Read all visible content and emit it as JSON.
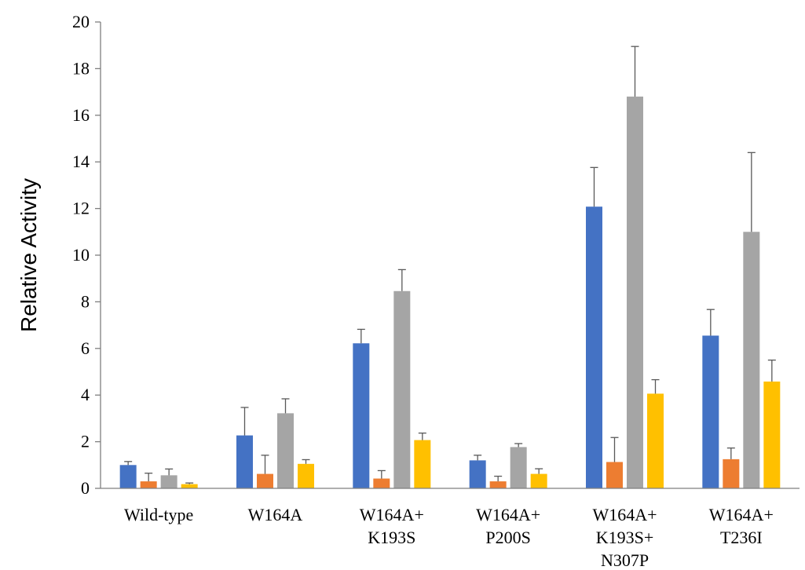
{
  "chart_data": {
    "type": "bar",
    "ylabel": "Relative Activity",
    "ylim": [
      0,
      20
    ],
    "yticks": [
      0,
      2,
      4,
      6,
      8,
      10,
      12,
      14,
      16,
      18,
      20
    ],
    "grid": false,
    "legend": "none",
    "error_bars": true,
    "categories": [
      [
        "Wild-type"
      ],
      [
        "W164A"
      ],
      [
        "W164A+",
        "K193S"
      ],
      [
        "W164A+",
        "P200S"
      ],
      [
        "W164A+",
        "K193S+",
        "N307P"
      ],
      [
        "W164A+",
        "T236I"
      ]
    ],
    "series": [
      {
        "color": "#4472C4",
        "values": [
          1.0,
          2.27,
          6.22,
          1.2,
          12.08,
          6.55
        ],
        "errors": [
          0.15,
          1.2,
          0.6,
          0.22,
          1.68,
          1.12
        ]
      },
      {
        "color": "#ED7D31",
        "values": [
          0.3,
          0.62,
          0.42,
          0.3,
          1.13,
          1.25
        ],
        "errors": [
          0.35,
          0.8,
          0.34,
          0.22,
          1.05,
          0.48
        ]
      },
      {
        "color": "#A5A5A5",
        "values": [
          0.56,
          3.22,
          8.46,
          1.77,
          16.8,
          11.0
        ],
        "errors": [
          0.27,
          0.62,
          0.92,
          0.15,
          2.15,
          3.4
        ]
      },
      {
        "color": "#FFC000",
        "values": [
          0.18,
          1.05,
          2.07,
          0.62,
          4.06,
          4.58
        ],
        "errors": [
          0.05,
          0.18,
          0.3,
          0.22,
          0.6,
          0.92
        ]
      }
    ]
  }
}
